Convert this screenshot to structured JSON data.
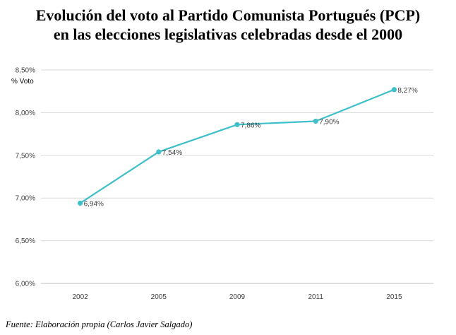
{
  "title_lines": [
    "Evolución del voto al Partido Comunista Portugués (PCP)",
    "en las elecciones legislativas celebradas desde el 2000"
  ],
  "source": "Fuente: Elaboración propia (Carlos Javier Salgado)",
  "colors": {
    "line": "#3ebfc9",
    "grid": "#d9d9d9",
    "axis": "#bfbfbf"
  },
  "chart_data": {
    "type": "line",
    "title": "Evolución del voto al Partido Comunista Portugués (PCP) en las elecciones legislativas celebradas desde el 2000",
    "categories": [
      "2002",
      "2005",
      "2009",
      "2011",
      "2015"
    ],
    "series": [
      {
        "name": "% Voto",
        "values": [
          6.94,
          7.54,
          7.86,
          7.9,
          8.27
        ]
      }
    ],
    "data_labels": [
      "6,94%",
      "7,54%",
      "7,86%",
      "7,90%",
      "8,27%"
    ],
    "yticks": [
      6.0,
      6.5,
      7.0,
      7.5,
      8.0,
      8.5
    ],
    "ytick_labels": [
      "6,00%",
      "6,50%",
      "7,00%",
      "7,50%",
      "8,00%",
      "8,50%"
    ],
    "ylabel": "% Voto",
    "xlabel": "",
    "ylim": [
      6.0,
      8.5
    ],
    "grid": true
  }
}
